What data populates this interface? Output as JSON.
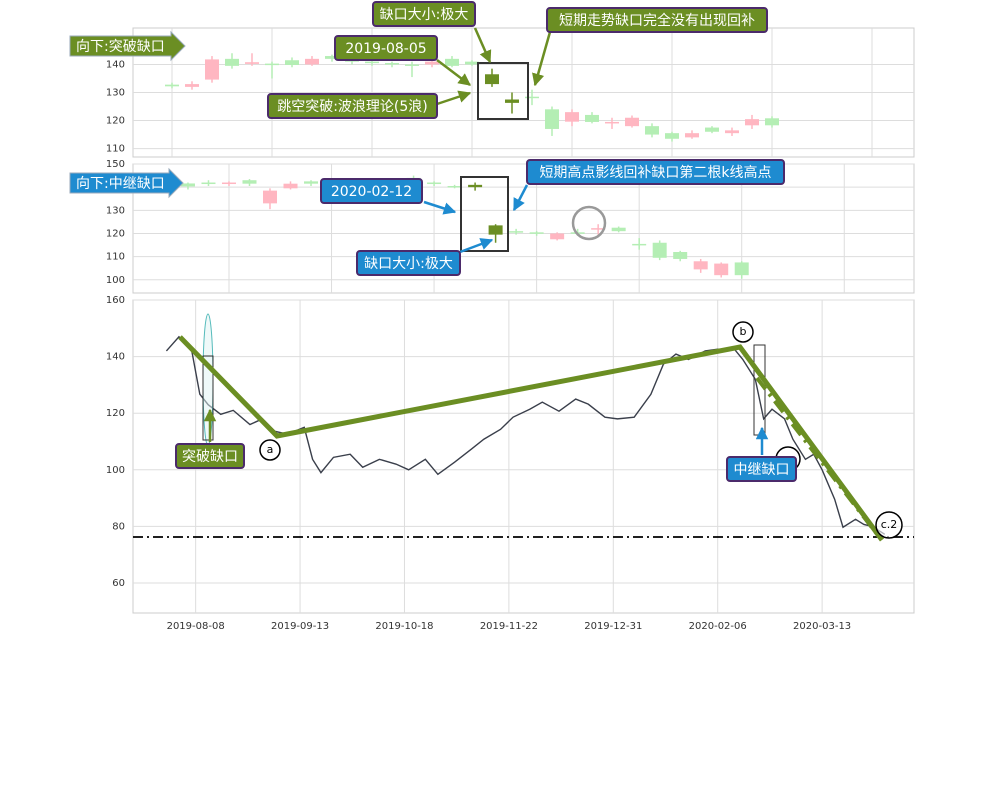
{
  "chart_data": [
    {
      "type": "candlestick",
      "open": [
        132.8,
        132,
        134.6,
        142,
        140.2,
        140.3,
        141.5,
        140,
        143,
        142,
        141,
        140.5,
        140,
        140,
        142,
        141,
        136.5,
        127.5,
        128.5,
        124,
        119.6,
        122,
        119.3,
        118,
        118,
        115.5,
        114,
        117.5,
        115.5,
        118.3,
        120.8
      ],
      "high": [
        133.5,
        134,
        143,
        144,
        144,
        141,
        142.5,
        143,
        143.5,
        142.5,
        142,
        141,
        141,
        142,
        143,
        141.5,
        138.5,
        130,
        131,
        125,
        124,
        123,
        121,
        121.8,
        119,
        116,
        116.5,
        118,
        117.5,
        122,
        121.5
      ],
      "low": [
        131.5,
        131,
        133.5,
        138.5,
        139.5,
        135,
        139,
        139.5,
        141,
        140,
        139.5,
        139,
        135.5,
        139,
        139,
        139.5,
        132,
        122.5,
        125.5,
        114.5,
        118,
        119,
        117,
        117.5,
        114,
        112.5,
        113.5,
        115.5,
        114.5,
        117,
        117.5
      ],
      "close": [
        132.2,
        133,
        141.8,
        139.5,
        140.8,
        140,
        139.8,
        142,
        142,
        141,
        140.5,
        140,
        139.5,
        141,
        139.5,
        140,
        133,
        126.3,
        128,
        117,
        123,
        119.5,
        119.5,
        121,
        115,
        113.5,
        115.5,
        116,
        116.5,
        120.5,
        118.3
      ],
      "up_color": "#ffb6c1",
      "down_color": "#b4eeb4",
      "highlight_color": "#6b8e23",
      "highlight": [
        16,
        17
      ],
      "xlim": [
        -1.95,
        37.1
      ],
      "xticks": [
        0,
        5,
        10,
        15,
        20,
        25,
        30,
        35
      ],
      "ylim": [
        107,
        153
      ],
      "yticks": [
        110,
        120,
        130,
        140
      ],
      "grid": true,
      "annotations": [
        "向下:突破缺口",
        "缺口大小:极大",
        "2019-08-05",
        "短期走势缺口完全没有出现回补",
        "跳空突破:波浪理论(5浪)"
      ]
    },
    {
      "type": "candlestick",
      "open": [
        141.6,
        142,
        141.5,
        143,
        133,
        139.5,
        142.5,
        141,
        142,
        141.5,
        143,
        144,
        142,
        140.5,
        141,
        123.5,
        121,
        120.5,
        117.5,
        120.5,
        122,
        122.5,
        115.5,
        116,
        112,
        104.5,
        102,
        107.5
      ],
      "high": [
        142,
        143,
        142.5,
        143.5,
        139.5,
        142.5,
        143,
        142.5,
        143,
        143.5,
        143.5,
        145,
        142.5,
        141,
        142,
        124,
        122,
        121,
        120.5,
        122,
        124,
        123,
        118,
        117,
        112.5,
        109,
        107.5,
        108
      ],
      "low": [
        139,
        140.5,
        140.5,
        140.5,
        130.5,
        139,
        140.5,
        140.5,
        140,
        141,
        141.5,
        142,
        140.5,
        139.5,
        138.5,
        116,
        119.5,
        119,
        117,
        119,
        119.5,
        120.5,
        113,
        108.5,
        108,
        103,
        101,
        100.5
      ],
      "close": [
        140.3,
        141.5,
        142,
        141.5,
        138.5,
        141.5,
        141.5,
        142,
        141,
        142.5,
        142,
        142.5,
        141.5,
        140,
        140,
        119.5,
        120.5,
        120,
        120,
        120,
        122.3,
        121,
        115.2,
        109.5,
        109,
        108,
        107,
        102
      ],
      "up_color": "#ffb6c1",
      "down_color": "#b4eeb4",
      "highlight_color": "#6b8e23",
      "highlight": [
        14,
        15
      ],
      "xlim": [
        -2.68,
        35.4
      ],
      "xticks": [
        2,
        7,
        12,
        17,
        22,
        27,
        32
      ],
      "ylim": [
        94.3,
        150
      ],
      "yticks": [
        100,
        110,
        120,
        130,
        140,
        150
      ],
      "grid": true,
      "annotations": [
        "向下:中继缺口",
        "2020-02-12",
        "短期高点影线回补缺口第二根k线高点",
        "缺口大小:极大"
      ]
    },
    {
      "type": "line",
      "x": [
        3,
        6,
        9,
        11,
        13,
        16,
        19,
        23,
        26,
        29,
        32,
        36,
        38,
        40,
        43,
        47,
        50,
        54,
        58,
        61,
        65,
        68,
        72,
        76,
        79,
        83,
        86,
        90,
        93,
        97,
        101,
        104,
        108,
        111,
        115,
        119,
        122,
        125,
        128,
        132,
        135,
        139,
        141,
        144,
        146,
        148,
        151,
        153,
        156,
        158,
        160,
        163,
        165,
        168,
        170,
        172,
        175
      ],
      "series": [
        {
          "values": [
            142,
            147,
            142.6,
            126.7,
            123,
            119.6,
            121,
            116,
            118,
            113.6,
            112.6,
            115,
            103.7,
            99,
            104.4,
            105.5,
            100.9,
            103.7,
            102,
            100,
            103.7,
            98.4,
            102.7,
            107.3,
            110.8,
            114.3,
            118.6,
            121.4,
            123.9,
            120.7,
            125,
            123.2,
            118.6,
            118,
            118.6,
            126.7,
            137.3,
            140.9,
            139,
            142,
            142.6,
            142.6,
            139,
            132,
            118,
            121.4,
            118,
            110.8,
            103.7,
            105.5,
            100,
            89.6,
            79.7,
            82.5,
            80.7,
            80,
            77.2
          ],
          "color": "#3a3f4b"
        }
      ],
      "xlim": [
        -5,
        182
      ],
      "xticks": [
        {
          "value": 10,
          "label": "2019-08-08"
        },
        {
          "value": 35,
          "label": "2019-09-13"
        },
        {
          "value": 60,
          "label": "2019-10-18"
        },
        {
          "value": 85,
          "label": "2019-11-22"
        },
        {
          "value": 110,
          "label": "2019-12-31"
        },
        {
          "value": 135,
          "label": "2020-02-06"
        },
        {
          "value": 160,
          "label": "2020-03-13"
        }
      ],
      "ylim": [
        49.4,
        160
      ],
      "yticks": [
        60,
        80,
        100,
        120,
        140,
        160
      ],
      "grid": true,
      "annotations": [
        "突破缺口",
        "中继缺口",
        "a",
        "b",
        "c.2"
      ]
    }
  ]
}
